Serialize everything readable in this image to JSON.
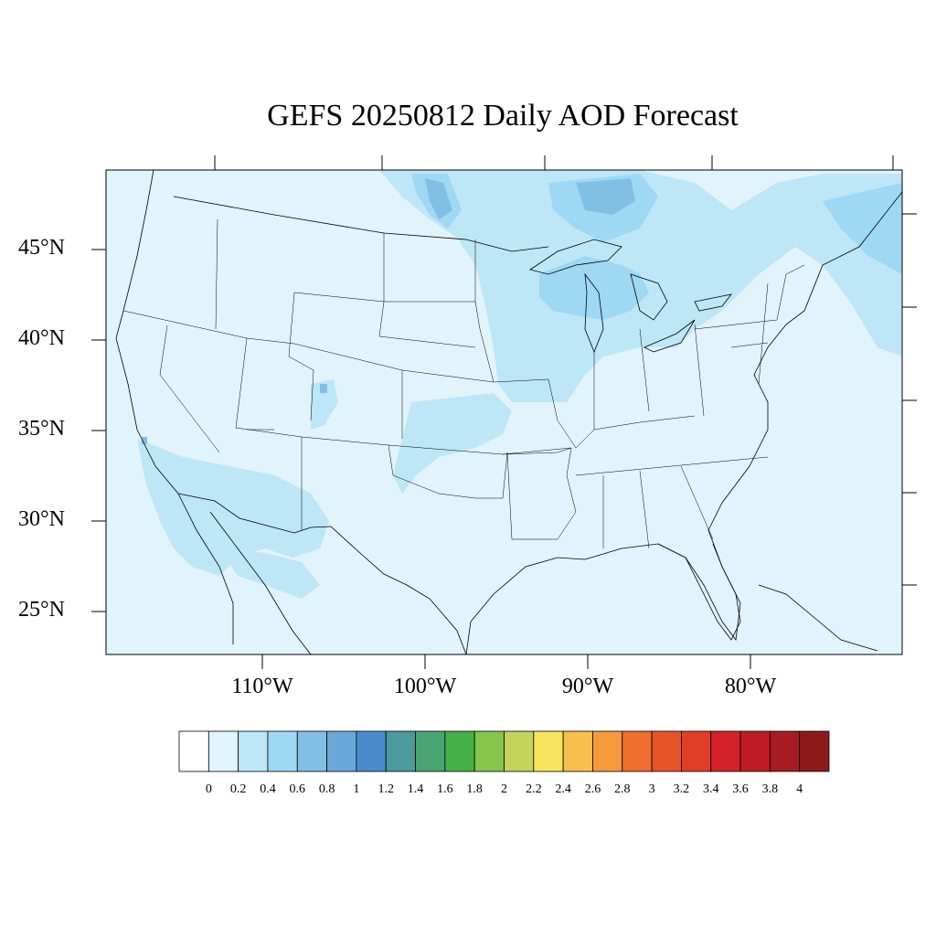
{
  "title": "GEFS 20250812 Daily AOD Forecast",
  "lat_labels": [
    "45°N",
    "40°N",
    "35°N",
    "30°N",
    "25°N"
  ],
  "lon_labels": [
    "110°W",
    "100°W",
    "90°W",
    "80°W"
  ],
  "colorbar": {
    "colors": [
      "#ffffff",
      "#e1f3fb",
      "#bde6f7",
      "#9ed8f3",
      "#82bfe5",
      "#69a8d9",
      "#4a8ccb",
      "#4a9a9e",
      "#48a572",
      "#46b048",
      "#86c44c",
      "#c2d55a",
      "#f6e45a",
      "#f7bf4b",
      "#f59a3d",
      "#f06e2e",
      "#e85429",
      "#e13e27",
      "#d42328",
      "#bd1c26",
      "#a61c22",
      "#8e191c"
    ],
    "ticks": [
      "0",
      "0.2",
      "0.4",
      "0.6",
      "0.8",
      "1",
      "1.2",
      "1.4",
      "1.6",
      "1.8",
      "2",
      "2.2",
      "2.4",
      "2.6",
      "2.8",
      "3",
      "3.2",
      "3.4",
      "3.6",
      "3.8",
      "4"
    ]
  },
  "map": {
    "background_color": "#e1f3fb",
    "aod_0_2_0_4_color": "#bde6f7",
    "aod_0_4_0_6_color": "#9ed8f3",
    "aod_0_6_0_8_color": "#82bfe5"
  }
}
